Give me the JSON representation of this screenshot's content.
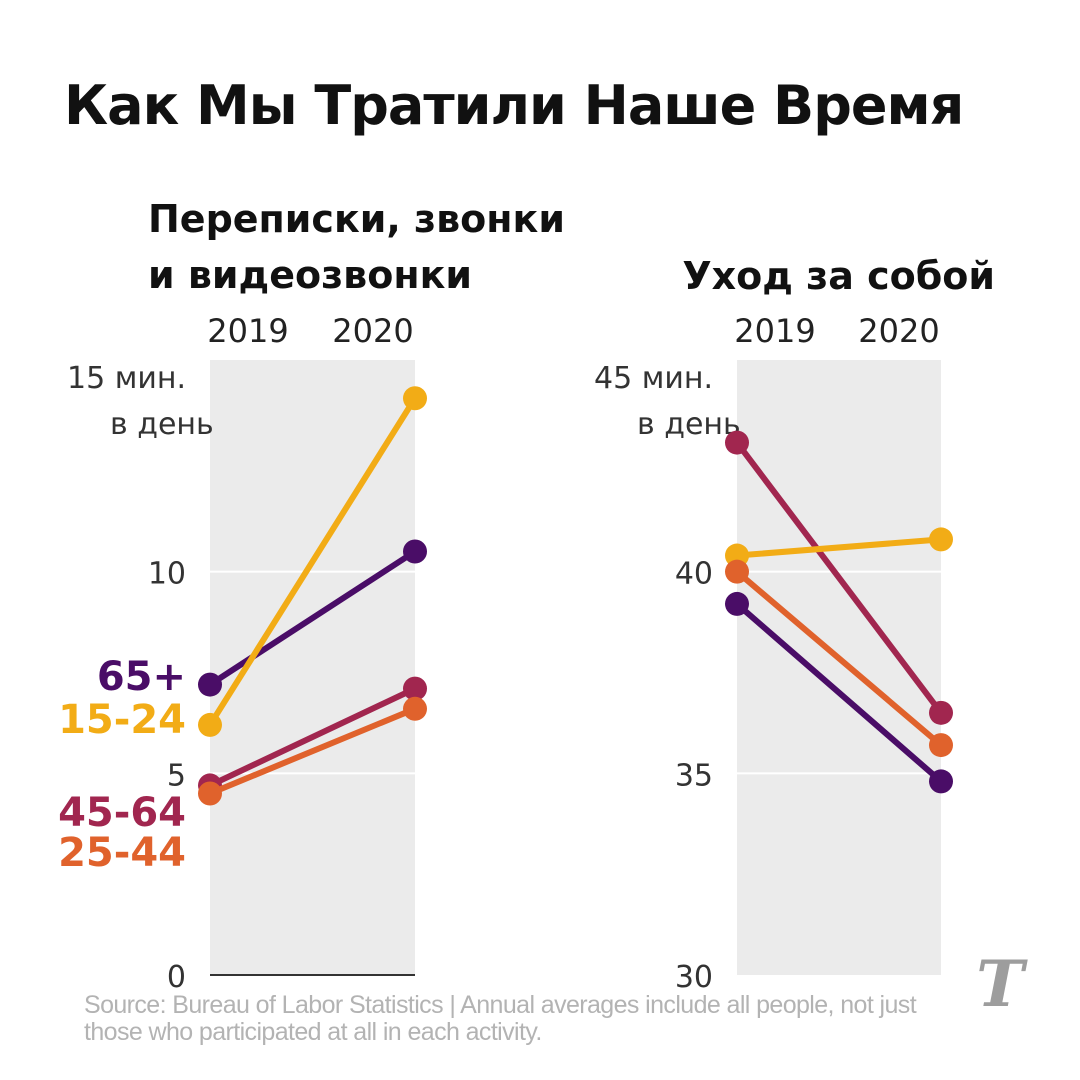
{
  "title": "Как Мы Тратили Наше Время",
  "source": "Source: Bureau of Labor Statistics | Annual averages include all people, not just those who participated at all in each activity.",
  "logo_glyph": "𝕿",
  "colors": {
    "65+": "#4a0d67",
    "15-24": "#f2ac16",
    "45-64": "#a1264f",
    "25-44": "#e0622c",
    "band": "#ebebeb",
    "grid": "#ffffff",
    "axis_text": "#333333"
  },
  "chart_data": [
    {
      "type": "line",
      "title_lines": [
        "Переписки, звонки",
        "и видеозвонки"
      ],
      "x": [
        "2019",
        "2020"
      ],
      "ylim": [
        0,
        15
      ],
      "yticks": [
        "15 мин.",
        "10",
        "5",
        "0"
      ],
      "ytick_values": [
        15,
        10,
        5,
        0
      ],
      "ytick_unit_line": "в день",
      "series": [
        {
          "name": "65+",
          "values": [
            7.2,
            10.5
          ]
        },
        {
          "name": "15-24",
          "values": [
            6.2,
            14.3
          ]
        },
        {
          "name": "45-64",
          "values": [
            4.7,
            7.1
          ]
        },
        {
          "name": "25-44",
          "values": [
            4.5,
            6.6
          ]
        }
      ]
    },
    {
      "type": "line",
      "title_lines": [
        "Уход за собой"
      ],
      "x": [
        "2019",
        "2020"
      ],
      "ylim": [
        30,
        45
      ],
      "yticks": [
        "45 мин.",
        "40",
        "35",
        "30"
      ],
      "ytick_values": [
        45,
        40,
        35,
        30
      ],
      "ytick_unit_line": "в день",
      "series": [
        {
          "name": "45-64",
          "values": [
            43.2,
            36.5
          ]
        },
        {
          "name": "15-24",
          "values": [
            40.4,
            40.8
          ]
        },
        {
          "name": "25-44",
          "values": [
            40.0,
            35.7
          ]
        },
        {
          "name": "65+",
          "values": [
            39.2,
            34.8
          ]
        }
      ]
    }
  ]
}
